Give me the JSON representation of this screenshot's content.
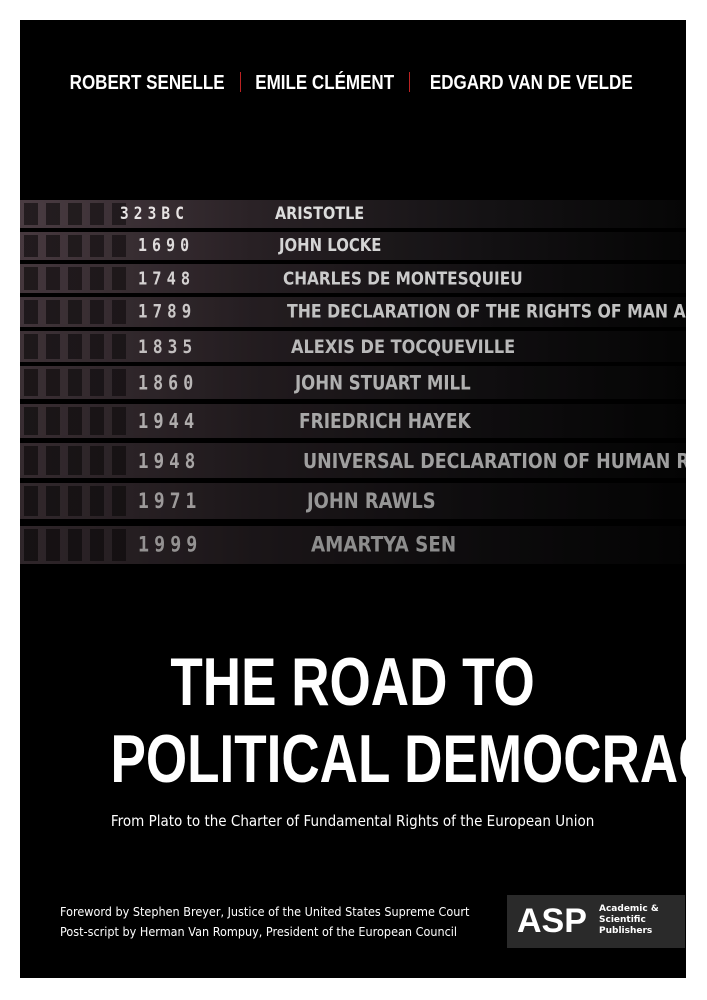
{
  "authors": [
    "ROBERT SENELLE",
    "EMILE CLÉMENT",
    "EDGARD VAN DE VELDE"
  ],
  "board": [
    {
      "year": "323BC",
      "name": "ARISTOTLE"
    },
    {
      "year": "1690",
      "name": "JOHN LOCKE"
    },
    {
      "year": "1748",
      "name": "CHARLES DE MONTESQUIEU"
    },
    {
      "year": "1789",
      "name": "THE DECLARATION OF THE RIGHTS OF MAN AND"
    },
    {
      "year": "1835",
      "name": "ALEXIS DE TOCQUEVILLE"
    },
    {
      "year": "1860",
      "name": "JOHN STUART MILL"
    },
    {
      "year": "1944",
      "name": "FRIEDRICH HAYEK"
    },
    {
      "year": "1948",
      "name": "UNIVERSAL DECLARATION OF HUMAN RIGHTS"
    },
    {
      "year": "1971",
      "name": "JOHN RAWLS"
    },
    {
      "year": "1999",
      "name": "AMARTYA SEN"
    }
  ],
  "title": [
    "THE ROAD TO",
    "POLITICAL DEMOCRACY"
  ],
  "subtitle": "From Plato to the Charter of Fundamental Rights of the European Union",
  "credits": [
    "Foreword by Stephen Breyer, Justice of the United States Supreme Court",
    "Post-script by Herman Van Rompuy, President of the European Council"
  ],
  "publisher": {
    "logo": "ASP",
    "name": [
      "Academic &",
      "Scientific",
      "Publishers"
    ]
  }
}
